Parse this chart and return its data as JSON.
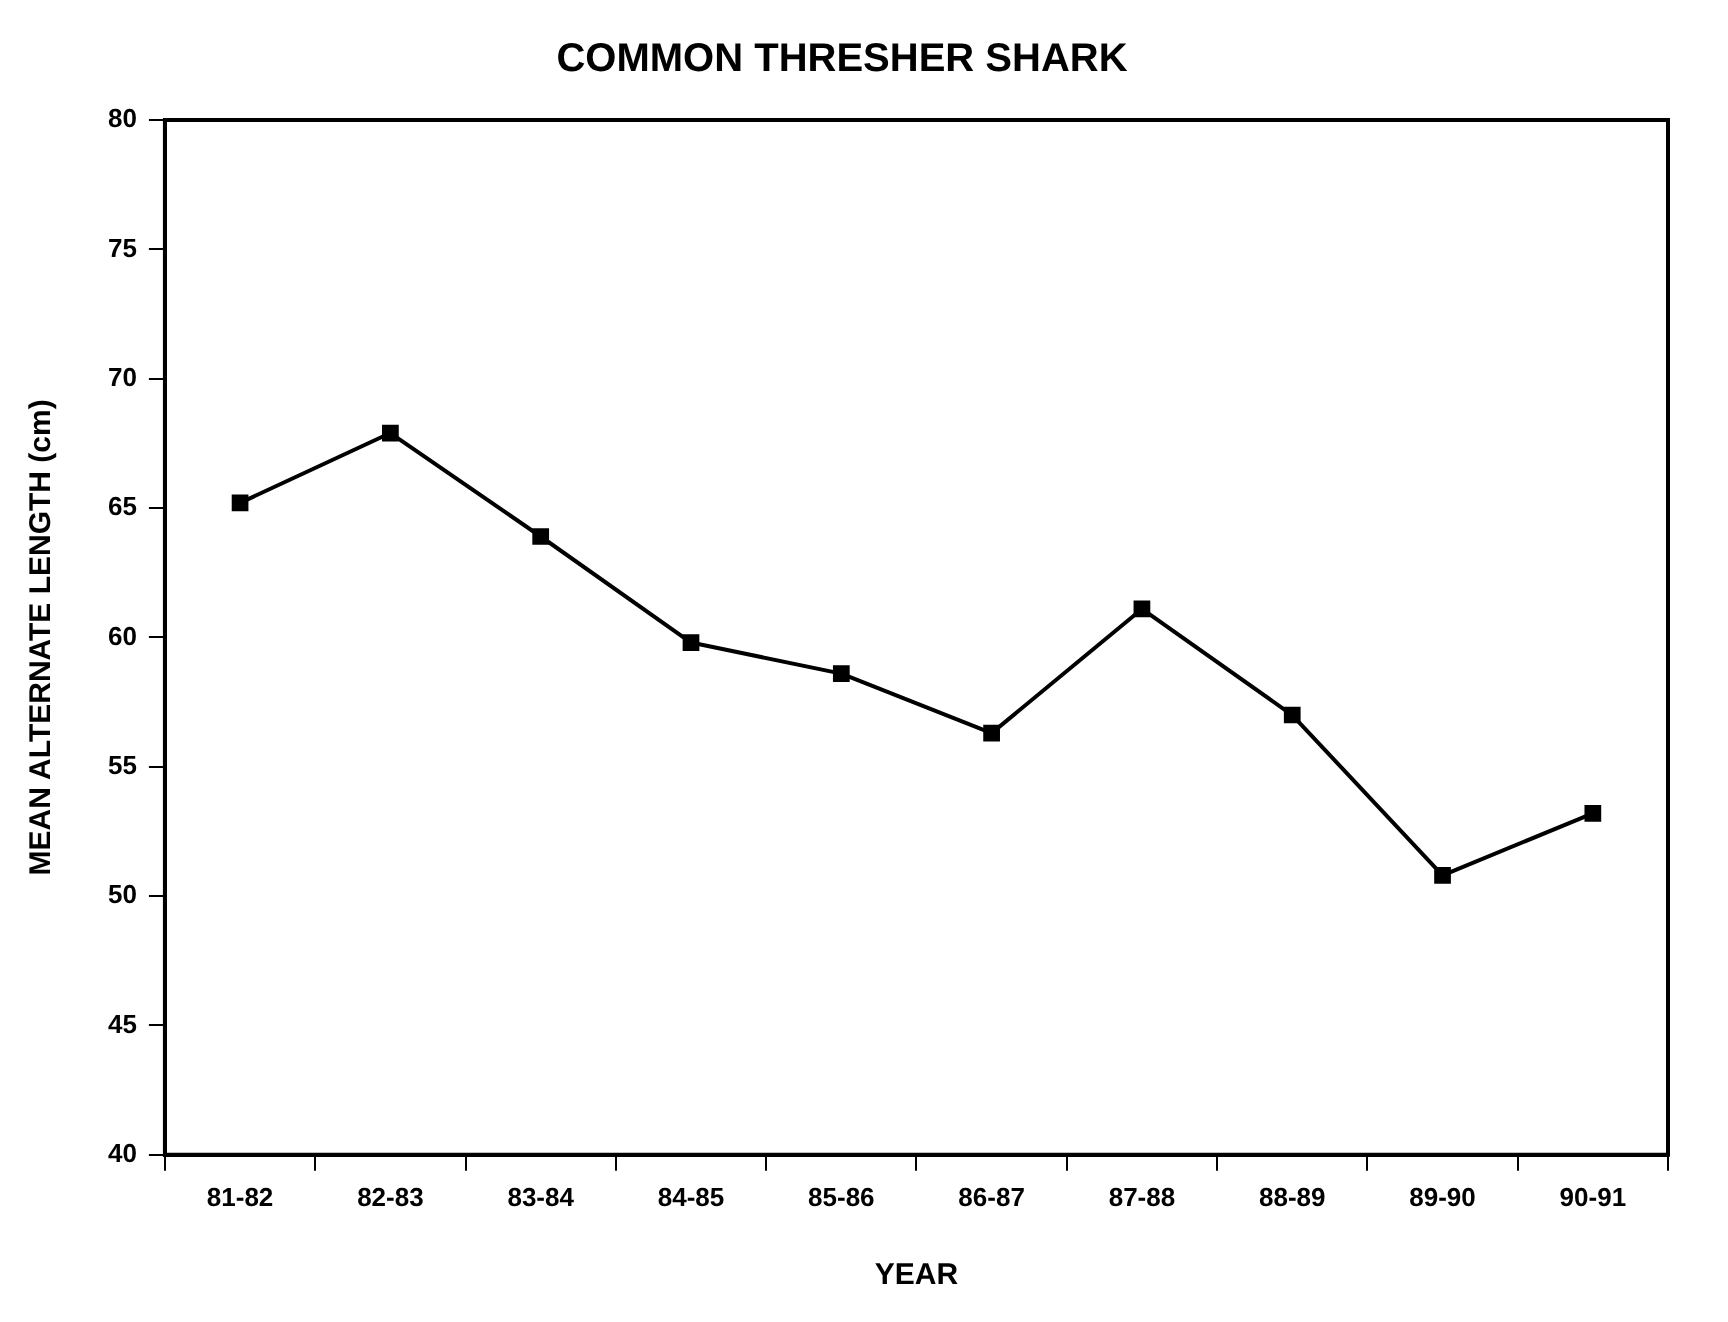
{
  "chart_data": {
    "type": "line",
    "title": "COMMON THRESHER SHARK",
    "xlabel": "YEAR",
    "ylabel": "MEAN ALTERNATE LENGTH (cm)",
    "categories": [
      "81-82",
      "82-83",
      "83-84",
      "84-85",
      "85-86",
      "86-87",
      "87-88",
      "88-89",
      "89-90",
      "90-91"
    ],
    "series": [
      {
        "color": "#000000",
        "values": [
          65.2,
          67.9,
          63.9,
          59.8,
          58.6,
          56.3,
          61.1,
          57.0,
          50.8,
          53.2
        ]
      }
    ],
    "ylim": [
      40,
      80
    ],
    "yticks": [
      40,
      45,
      50,
      55,
      60,
      65,
      70,
      75,
      80
    ],
    "grid": false,
    "legend": false,
    "marker": "square",
    "line_style": "solid"
  }
}
